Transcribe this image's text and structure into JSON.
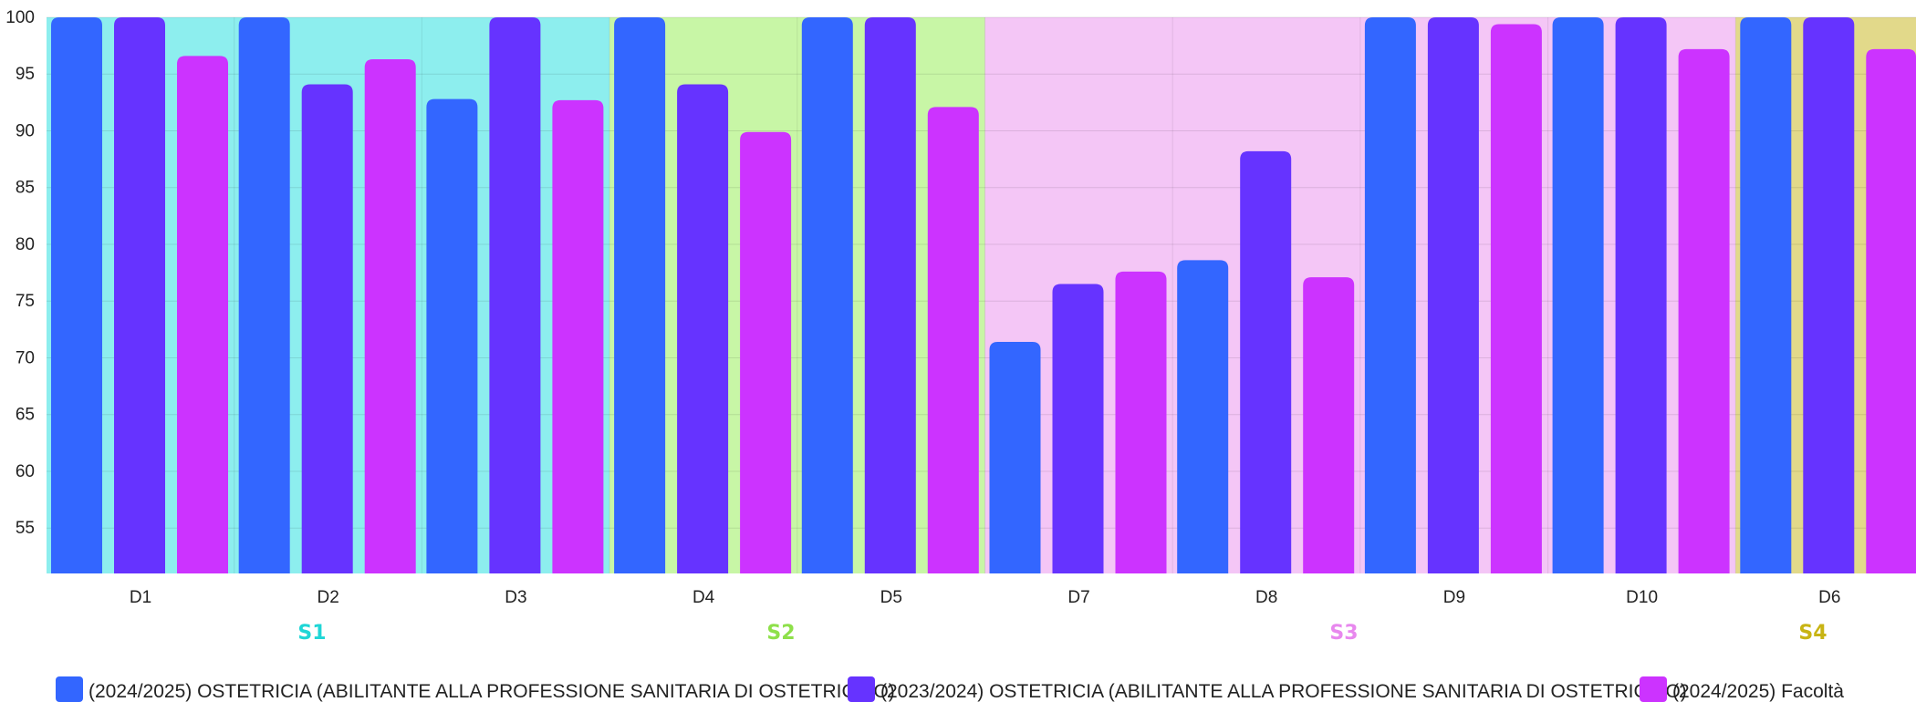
{
  "chart_data": {
    "type": "bar",
    "ylim": [
      51,
      100
    ],
    "yticks": [
      55,
      60,
      65,
      70,
      75,
      80,
      85,
      90,
      95,
      100
    ],
    "categories": [
      "D1",
      "D2",
      "D3",
      "D4",
      "D5",
      "D7",
      "D8",
      "D9",
      "D10",
      "D6"
    ],
    "series": [
      {
        "name": "(2024/2025) OSTETRICIA (ABILITANTE ALLA PROFESSIONE SANITARIA DI OSTETRICA/O)",
        "color": "#3366ff",
        "values": [
          100,
          100,
          92.8,
          100,
          100,
          71.4,
          78.6,
          100,
          100,
          100
        ]
      },
      {
        "name": "(2023/2024) OSTETRICIA (ABILITANTE ALLA PROFESSIONE SANITARIA DI OSTETRICA/O)",
        "color": "#6633ff",
        "values": [
          100,
          94.1,
          100,
          94.1,
          100,
          76.5,
          88.2,
          100,
          100,
          100
        ]
      },
      {
        "name": "(2024/2025) Facoltà",
        "color": "#cc33ff",
        "values": [
          96.6,
          96.3,
          92.7,
          89.9,
          92.1,
          77.6,
          77.1,
          99.4,
          97.2,
          97.2
        ]
      }
    ],
    "groups": [
      {
        "label": "S1",
        "categories": [
          "D1",
          "D2",
          "D3"
        ],
        "color": "#1fd6d6",
        "bg": "#8deeee"
      },
      {
        "label": "S2",
        "categories": [
          "D4",
          "D5"
        ],
        "color": "#8ee04a",
        "bg": "#c8f6a6"
      },
      {
        "label": "S3",
        "categories": [
          "D7",
          "D8",
          "D9",
          "D10"
        ],
        "color": "#e888ee",
        "bg": "#f4c6f6"
      },
      {
        "label": "S4",
        "categories": [
          "D6"
        ],
        "color": "#c8b414",
        "bg": "#e2d98a"
      }
    ],
    "grid": true,
    "legend_position": "bottom"
  }
}
